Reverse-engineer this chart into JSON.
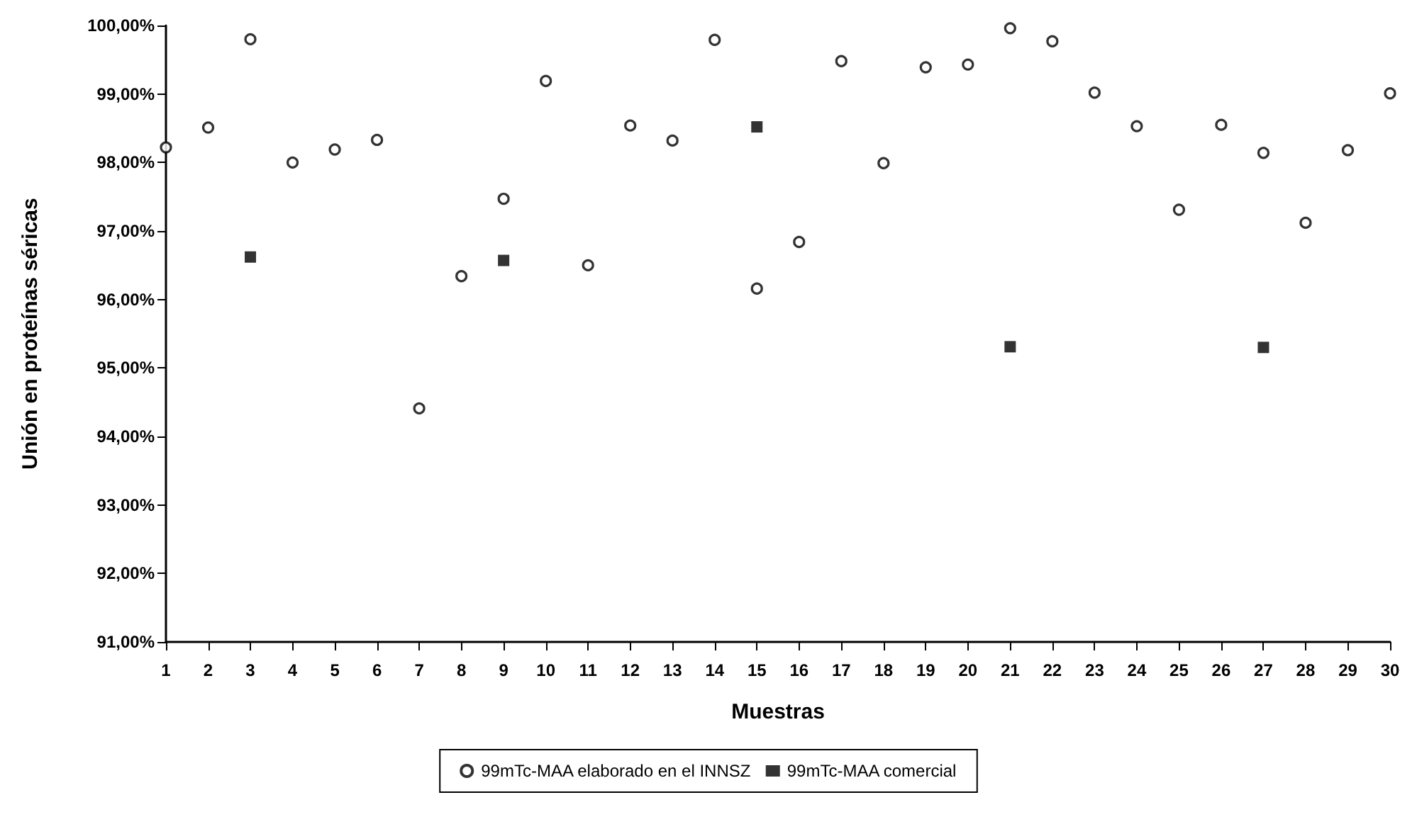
{
  "chart_data": {
    "type": "scatter",
    "xlabel": "Muestras",
    "ylabel": "Unión en proteínas séricas",
    "x": [
      1,
      2,
      3,
      4,
      5,
      6,
      7,
      8,
      9,
      10,
      11,
      12,
      13,
      14,
      15,
      16,
      17,
      18,
      19,
      20,
      21,
      22,
      23,
      24,
      25,
      26,
      27,
      28,
      29,
      30
    ],
    "series": [
      {
        "name": "99mTc-MAA elaborado en el INNSZ",
        "color": "#000000",
        "marker": "circle",
        "values": [
          98.22,
          98.51,
          99.8,
          98.0,
          98.19,
          98.33,
          94.41,
          96.34,
          97.47,
          99.19,
          96.5,
          98.54,
          98.32,
          99.79,
          96.16,
          96.84,
          99.48,
          97.99,
          99.39,
          99.43,
          99.96,
          99.77,
          99.02,
          98.53,
          97.31,
          98.55,
          98.14,
          97.12,
          98.18,
          99.01
        ]
      },
      {
        "name": "99mTc-MAA comercial",
        "color": "#000000",
        "marker": "square",
        "x": [
          3,
          9,
          15,
          21,
          27
        ],
        "values": [
          96.62,
          96.57,
          98.52,
          95.31,
          95.3
        ]
      }
    ],
    "xlim": [
      1,
      30
    ],
    "xticks": [
      1,
      2,
      3,
      4,
      5,
      6,
      7,
      8,
      9,
      10,
      11,
      12,
      13,
      14,
      15,
      16,
      17,
      18,
      19,
      20,
      21,
      22,
      23,
      24,
      25,
      26,
      27,
      28,
      29,
      30
    ],
    "ylim": [
      91,
      100
    ],
    "yticks": [
      {
        "value": 91,
        "label": "91,00%"
      },
      {
        "value": 92,
        "label": "92,00%"
      },
      {
        "value": 93,
        "label": "93,00%"
      },
      {
        "value": 94,
        "label": "94,00%"
      },
      {
        "value": 95,
        "label": "95,00%"
      },
      {
        "value": 96,
        "label": "96,00%"
      },
      {
        "value": 97,
        "label": "97,00%"
      },
      {
        "value": 98,
        "label": "98,00%"
      },
      {
        "value": 99,
        "label": "99,00%"
      },
      {
        "value": 100,
        "label": "100,00%"
      }
    ],
    "grid": false,
    "legend": "bottom"
  }
}
